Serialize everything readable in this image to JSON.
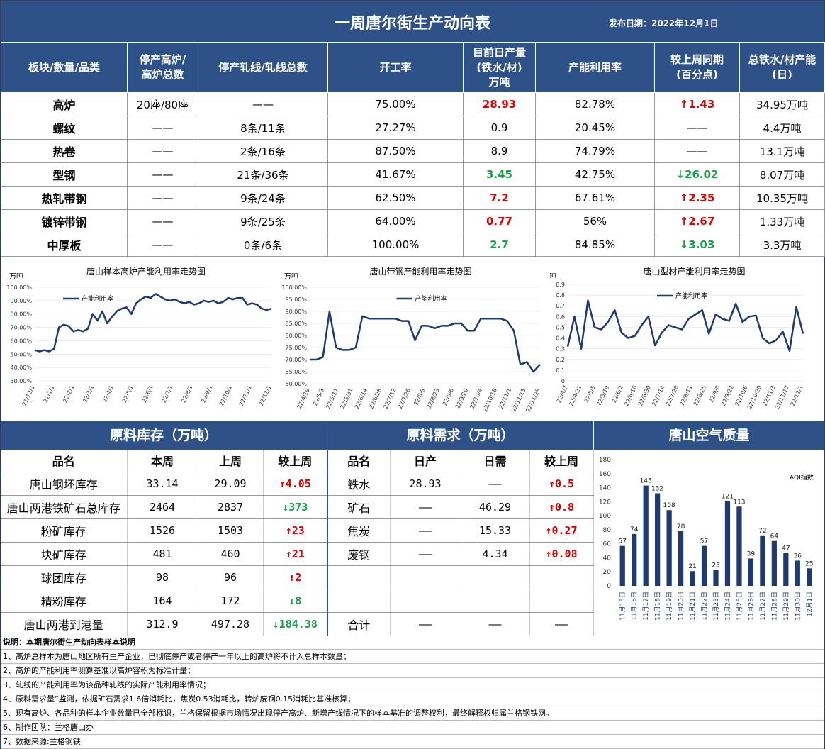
{
  "header": {
    "title": "一周唐尔街生产动向表",
    "date": "发布日期：2022年12月1日"
  },
  "main_table": {
    "columns": [
      "板块/数量/品类",
      "停产高炉/高炉总数",
      "停产轧线/轧线总数",
      "开工率",
      "目前日产量(铁水/材)万吨",
      "产能利用率",
      "较上周同期(百分点)",
      "总铁水/材产能(日)"
    ],
    "rows": [
      {
        "cat": "高炉",
        "furnace": "20座/80座",
        "line": "——",
        "rate": "75.00%",
        "output": "28.93",
        "output_color": "red",
        "util": "82.78%",
        "change": "↑1.43",
        "change_color": "red",
        "capacity": "34.95万吨"
      },
      {
        "cat": "螺纹",
        "furnace": "——",
        "line": "8条/11条",
        "rate": "27.27%",
        "output": "0.9",
        "output_color": "",
        "util": "20.45%",
        "change": "——",
        "change_color": "",
        "capacity": "4.4万吨"
      },
      {
        "cat": "热卷",
        "furnace": "——",
        "line": "2条/16条",
        "rate": "87.50%",
        "output": "8.9",
        "output_color": "",
        "util": "74.79%",
        "change": "——",
        "change_color": "",
        "capacity": "13.1万吨"
      },
      {
        "cat": "型钢",
        "furnace": "——",
        "line": "21条/36条",
        "rate": "41.67%",
        "output": "3.45",
        "output_color": "green",
        "util": "42.75%",
        "change": "↓26.02",
        "change_color": "green",
        "capacity": "8.07万吨"
      },
      {
        "cat": "热轧带钢",
        "furnace": "——",
        "line": "9条/24条",
        "rate": "62.50%",
        "output": "7.2",
        "output_color": "red",
        "util": "67.61%",
        "change": "↑2.35",
        "change_color": "red",
        "capacity": "10.35万吨"
      },
      {
        "cat": "镀锌带钢",
        "furnace": "——",
        "line": "9条/25条",
        "rate": "64.00%",
        "output": "0.77",
        "output_color": "red",
        "util": "56%",
        "change": "↑2.67",
        "change_color": "red",
        "capacity": "1.33万吨"
      },
      {
        "cat": "中厚板",
        "furnace": "——",
        "line": "0条/6条",
        "rate": "100.00%",
        "output": "2.7",
        "output_color": "green",
        "util": "84.85%",
        "change": "↓3.03",
        "change_color": "green",
        "capacity": "3.3万吨"
      }
    ]
  },
  "chart_data": [
    {
      "type": "line",
      "title": "唐山样本高炉产能利用率走势图",
      "ylabel": "万吨",
      "series": [
        {
          "name": "产能利用率",
          "values": [
            53,
            52,
            53,
            52,
            54,
            70,
            72,
            71,
            67,
            68,
            67,
            69,
            80,
            75,
            82,
            73,
            78,
            82,
            84,
            85,
            80,
            88,
            91,
            93,
            92,
            95,
            93,
            91,
            90,
            91,
            89,
            88,
            89,
            87,
            88,
            90,
            89,
            90,
            88,
            89,
            92,
            91,
            92,
            92,
            87,
            88,
            87,
            84,
            83,
            84
          ]
        }
      ],
      "x_ticks": [
        "21/12/1",
        "22/1/1",
        "22/2/1",
        "22/3/1",
        "22/4/1",
        "22/5/1",
        "22/6/1",
        "22/7/1",
        "22/8/1",
        "22/9/1",
        "22/10/1",
        "22/11/1",
        "22/12/1"
      ],
      "y_ticks": [
        "100.00%",
        "90.00%",
        "80.00%",
        "70.00%",
        "60.00%",
        "50.00%",
        "40.00%",
        "30.00%"
      ],
      "ylim": [
        30,
        100
      ],
      "legend": "top-left"
    },
    {
      "type": "line",
      "title": "唐山带钢产能利用率走势图",
      "ylabel": "万吨",
      "series": [
        {
          "name": "产能利用率",
          "values": [
            70,
            70,
            71,
            90,
            75,
            74,
            74,
            75,
            88,
            87,
            87,
            87,
            87,
            87,
            86,
            86,
            78,
            84,
            84,
            83,
            84,
            84,
            85,
            85,
            82,
            82,
            87,
            87,
            87,
            87,
            86,
            82,
            68,
            69,
            65,
            68
          ]
        }
      ],
      "x_ticks": [
        "22/4/19",
        "22/5/3",
        "22/5/17",
        "22/5/31",
        "22/6/14",
        "22/6/28",
        "22/7/12",
        "22/7/26",
        "22/8/9",
        "22/8/23",
        "22/9/6",
        "22/9/20",
        "22/10/4",
        "22/10/18",
        "22/11/1",
        "22/11/15",
        "22/11/29"
      ],
      "y_ticks": [
        "100.00%",
        "95.00%",
        "90.00%",
        "85.00%",
        "80.00%",
        "75.00%",
        "70.00%",
        "65.00%",
        "60.00%"
      ],
      "ylim": [
        60,
        100
      ],
      "legend": "top-center"
    },
    {
      "type": "line",
      "title": "唐山型材产能利用率走势图",
      "ylabel": "万吨",
      "series": [
        {
          "name": "产能利用率",
          "values": [
            0.32,
            0.6,
            0.3,
            0.75,
            0.5,
            0.48,
            0.55,
            0.66,
            0.45,
            0.4,
            0.42,
            0.52,
            0.6,
            0.33,
            0.45,
            0.52,
            0.5,
            0.48,
            0.58,
            0.62,
            0.66,
            0.44,
            0.62,
            0.58,
            0.56,
            0.72,
            0.55,
            0.6,
            0.61,
            0.4,
            0.35,
            0.38,
            0.46,
            0.28,
            0.69,
            0.44
          ]
        }
      ],
      "x_ticks": [
        "22/4/7",
        "22/4/21",
        "22/5/5",
        "22/5/19",
        "22/6/2",
        "22/6/16",
        "22/6/30",
        "22/7/14",
        "22/7/28",
        "22/8/11",
        "22/8/25",
        "22/9/8",
        "22/9/22",
        "22/10/6",
        "22/10/20",
        "22/11/3",
        "22/11/17",
        "22/12/1"
      ],
      "y_ticks": [
        "0.9",
        "0.8",
        "0.7",
        "0.6",
        "0.5",
        "0.4",
        "0.3",
        "0.2",
        "0.1",
        "0"
      ],
      "ylim": [
        0,
        0.9
      ],
      "legend": "top-center"
    },
    {
      "type": "bar",
      "title": "",
      "legend_label": "AQI指数",
      "categories": [
        "11月15日",
        "11月16日",
        "11月17日",
        "11月18日",
        "11月19日",
        "11月20日",
        "11月21日",
        "11月22日",
        "11月23日",
        "11月24日",
        "11月25日",
        "11月26日",
        "11月27日",
        "11月28日",
        "11月29日",
        "11月30日",
        "12月1日"
      ],
      "values": [
        57,
        74,
        143,
        132,
        108,
        78,
        21,
        57,
        23,
        121,
        113,
        39,
        72,
        64,
        47,
        36,
        25
      ],
      "y_ticks": [
        "180",
        "160",
        "140",
        "120",
        "100",
        "80",
        "60",
        "40",
        "20",
        "0"
      ],
      "ylim": [
        0,
        180
      ]
    }
  ],
  "inventory": {
    "header": "原料库存（万吨）",
    "columns": [
      "品名",
      "本周",
      "上周",
      "较上周"
    ],
    "rows": [
      {
        "name": "唐山钢坯库存",
        "this": "33.14",
        "last": "29.09",
        "change": "↑4.05",
        "color": "red"
      },
      {
        "name": "唐山两港铁矿石总库存",
        "this": "2464",
        "last": "2837",
        "change": "↓373",
        "color": "green"
      },
      {
        "name": "粉矿库存",
        "this": "1526",
        "last": "1503",
        "change": "↑23",
        "color": "red"
      },
      {
        "name": "块矿库存",
        "this": "481",
        "last": "460",
        "change": "↑21",
        "color": "red"
      },
      {
        "name": "球团库存",
        "this": "98",
        "last": "96",
        "change": "↑2",
        "color": "red"
      },
      {
        "name": "精粉库存",
        "this": "164",
        "last": "172",
        "change": "↓8",
        "color": "green"
      },
      {
        "name": "唐山两港到港量",
        "this": "312.9",
        "last": "497.28",
        "change": "↓184.38",
        "color": "green"
      }
    ]
  },
  "demand": {
    "header": "原料需求（万吨）",
    "columns": [
      "品名",
      "日产",
      "日需",
      "较上周"
    ],
    "rows": [
      {
        "name": "铁水",
        "daily": "28.93",
        "need": "——",
        "change": "↑0.5",
        "color": "red"
      },
      {
        "name": "矿石",
        "daily": "——",
        "need": "46.29",
        "change": "↑0.8",
        "color": "red"
      },
      {
        "name": "焦炭",
        "daily": "——",
        "need": "15.33",
        "change": "↑0.27",
        "color": "red"
      },
      {
        "name": "废钢",
        "daily": "——",
        "need": "4.34",
        "change": "↑0.08",
        "color": "red"
      },
      {
        "name": "",
        "daily": "",
        "need": "",
        "change": "",
        "color": ""
      },
      {
        "name": "",
        "daily": "",
        "need": "",
        "change": "",
        "color": ""
      },
      {
        "name": "合计",
        "daily": "——",
        "need": "——",
        "change": "——",
        "color": ""
      }
    ]
  },
  "air": {
    "header": "唐山空气质量"
  },
  "notes": [
    "说明：本期唐尔街生产动向表样本说明",
    "1、高炉总样本为唐山地区所有生产企业，已彻底停产或者停产一年以上的高炉将不计入总样本数量；",
    "2、高炉的产能利用率测算基准以高炉容积为标准计量；",
    "3、轧线的产能利用率为该品种轧线的实际产能利用率情况；",
    "4、原料需求量”监测，依据矿石需求1.6倍消耗比，焦炭0.53消耗比，转炉废钢0.15消耗比基准核算；",
    "5、现有高炉、各品种的样本企业数量已全部标识，兰格保留根据市场情况出现停产高炉、新增产线情况下的样本基准的调整权利，最终解释权归属兰格钢铁网。",
    "6、制作团队：兰格唐山办",
    "7、数据来源:兰格钢铁"
  ]
}
